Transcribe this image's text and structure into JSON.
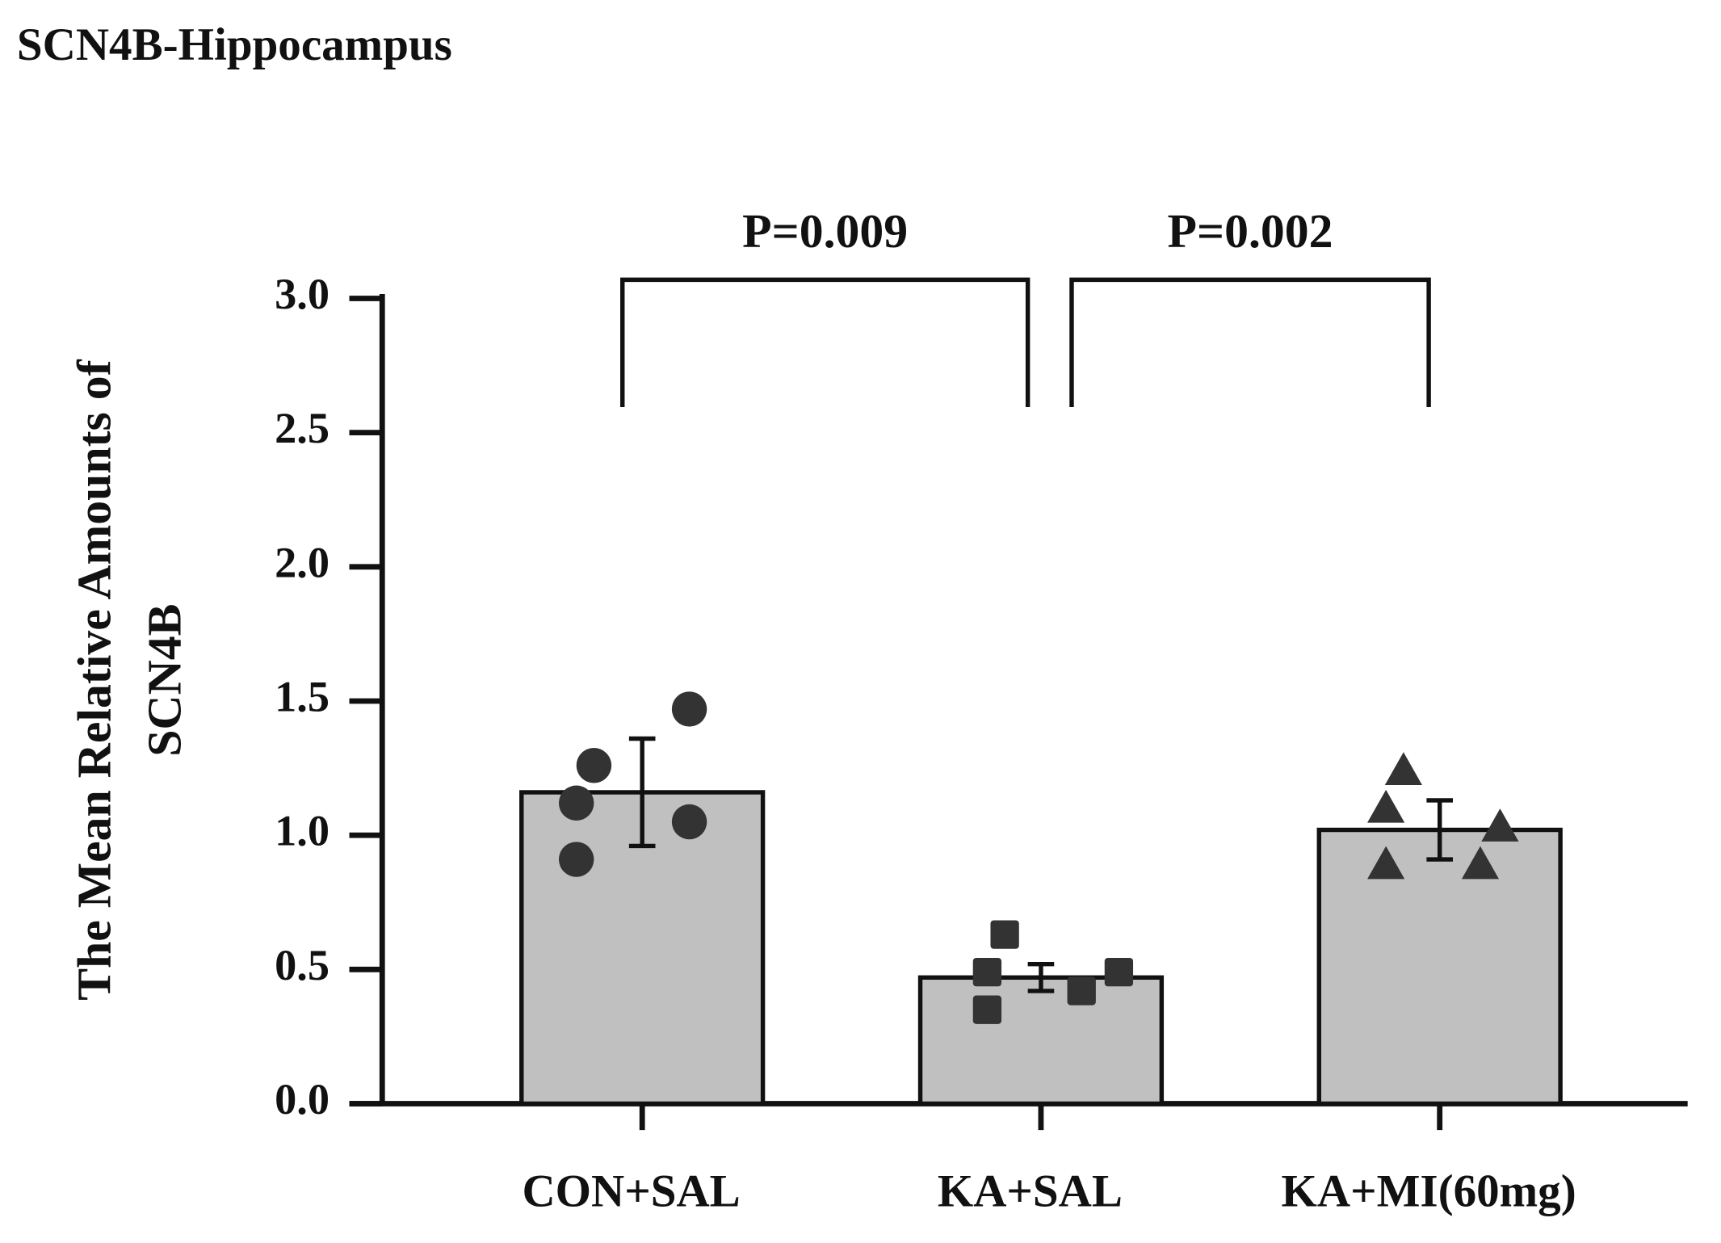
{
  "chart_data": {
    "type": "bar",
    "title": "SCN4B-Hippocampus",
    "y_label": [
      "The Mean Relative Amounts of",
      "SCN4B"
    ],
    "categories": [
      "CON+SAL",
      "KA+SAL",
      "KA+MI(60mg)"
    ],
    "values": [
      1.16,
      0.47,
      1.02
    ],
    "errors": [
      0.2,
      0.05,
      0.11
    ],
    "color": "#c0c0c0",
    "point_color": "#333333",
    "markers": [
      "circle",
      "square",
      "triangle"
    ],
    "points": [
      [
        0.91,
        1.12,
        1.26,
        1.47,
        1.05
      ],
      [
        0.35,
        0.49,
        0.63,
        0.42,
        0.49
      ],
      [
        0.89,
        1.1,
        1.24,
        0.89,
        1.03
      ]
    ],
    "ylim": [
      0,
      3.0
    ],
    "yticks": [
      {
        "value": 0,
        "label": "0.0"
      },
      0.5,
      {
        "value": 1,
        "label": "1.0"
      },
      1.5,
      {
        "value": 2,
        "label": "2.0"
      },
      2.5,
      {
        "value": 3,
        "label": "3.0"
      }
    ],
    "comparisons": [
      {
        "label": "P=0.009",
        "groups": [
          0,
          1
        ]
      },
      {
        "label": "P=0.002",
        "groups": [
          1,
          2
        ]
      }
    ]
  }
}
